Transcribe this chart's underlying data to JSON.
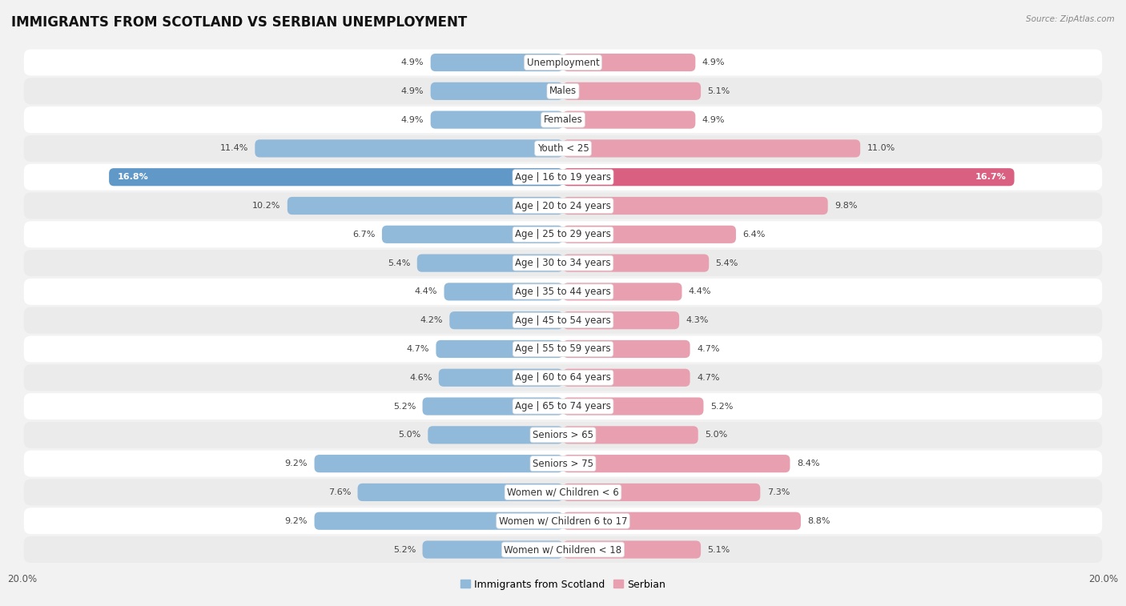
{
  "title": "IMMIGRANTS FROM SCOTLAND VS SERBIAN UNEMPLOYMENT",
  "source": "Source: ZipAtlas.com",
  "categories": [
    "Unemployment",
    "Males",
    "Females",
    "Youth < 25",
    "Age | 16 to 19 years",
    "Age | 20 to 24 years",
    "Age | 25 to 29 years",
    "Age | 30 to 34 years",
    "Age | 35 to 44 years",
    "Age | 45 to 54 years",
    "Age | 55 to 59 years",
    "Age | 60 to 64 years",
    "Age | 65 to 74 years",
    "Seniors > 65",
    "Seniors > 75",
    "Women w/ Children < 6",
    "Women w/ Children 6 to 17",
    "Women w/ Children < 18"
  ],
  "scotland_values": [
    4.9,
    4.9,
    4.9,
    11.4,
    16.8,
    10.2,
    6.7,
    5.4,
    4.4,
    4.2,
    4.7,
    4.6,
    5.2,
    5.0,
    9.2,
    7.6,
    9.2,
    5.2
  ],
  "serbian_values": [
    4.9,
    5.1,
    4.9,
    11.0,
    16.7,
    9.8,
    6.4,
    5.4,
    4.4,
    4.3,
    4.7,
    4.7,
    5.2,
    5.0,
    8.4,
    7.3,
    8.8,
    5.1
  ],
  "scotland_color": "#91b9d9",
  "serbian_color": "#e8a0b0",
  "scotland_highlight_color": "#6098c8",
  "serbian_highlight_color": "#d96080",
  "highlight_row": 4,
  "xlim": 20.0,
  "legend_labels": [
    "Immigrants from Scotland",
    "Serbian"
  ],
  "background_color": "#f2f2f2",
  "row_bg_color": "#ffffff",
  "row_alt_bg_color": "#ebebeb",
  "title_fontsize": 12,
  "label_fontsize": 8.5,
  "value_fontsize": 8,
  "axis_tick_fontsize": 8.5
}
